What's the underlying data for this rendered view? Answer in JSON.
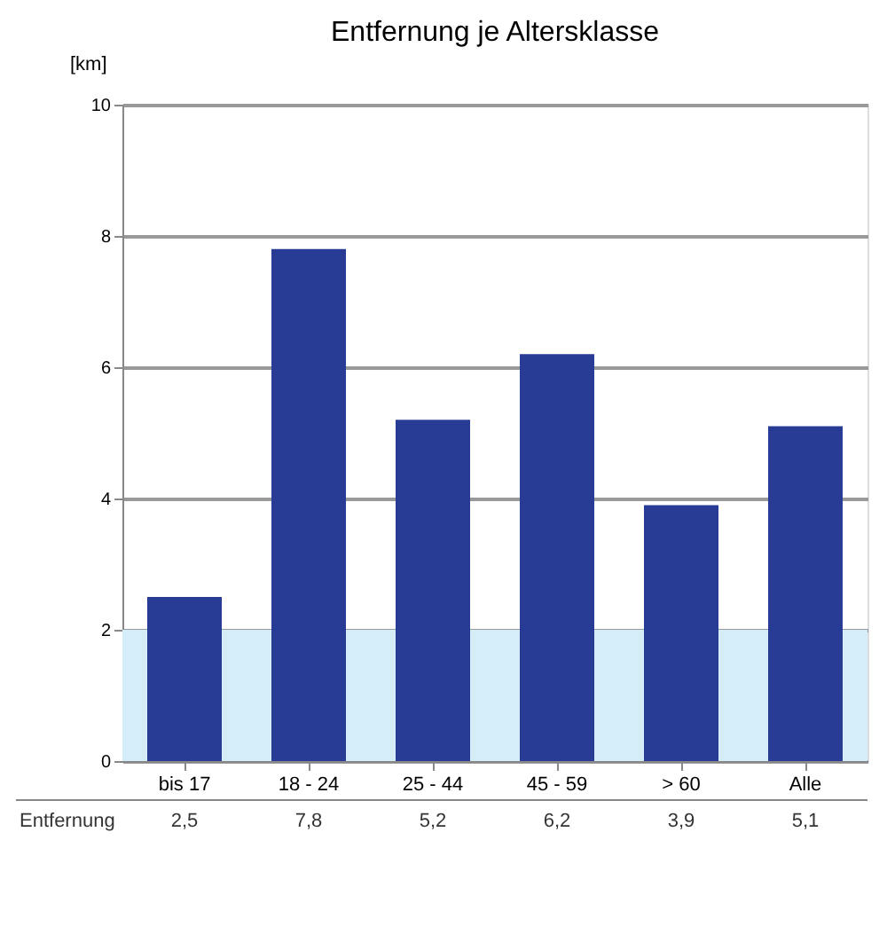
{
  "chart_data": {
    "type": "bar",
    "title": "Entfernung je Altersklasse",
    "ylabel": "[km]",
    "categories": [
      "bis 17",
      "18 - 24",
      "25 - 44",
      "45 - 59",
      "> 60",
      "Alle"
    ],
    "values": [
      2.5,
      7.8,
      5.2,
      6.2,
      3.9,
      5.1
    ],
    "value_labels": [
      "2,5",
      "7,8",
      "5,2",
      "6,2",
      "3,9",
      "5,1"
    ],
    "color": "#283c96",
    "ylim": [
      0,
      10
    ],
    "yticks": [
      0,
      2,
      4,
      6,
      8,
      10
    ],
    "grid": "y",
    "bands": [
      {
        "axis": "y",
        "from": 0,
        "to": 2,
        "color": "#d4edf8"
      }
    ],
    "annotations": [
      "Entfernung"
    ]
  }
}
